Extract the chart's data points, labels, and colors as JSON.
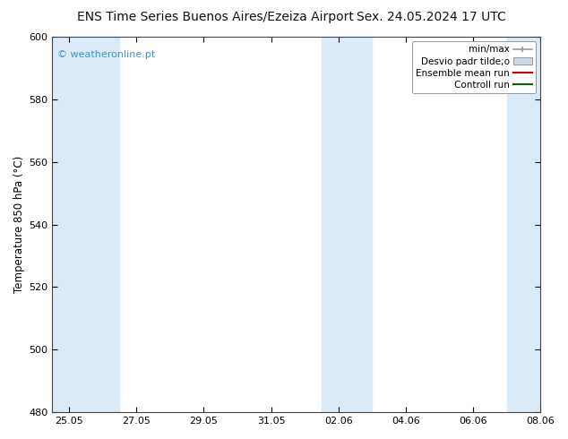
{
  "title_left": "ENS Time Series Buenos Aires/Ezeiza Airport",
  "title_right": "Sex. 24.05.2024 17 UTC",
  "ylabel": "Temperature 850 hPa (°C)",
  "watermark": "© weatheronline.pt",
  "ylim": [
    480,
    600
  ],
  "yticks": [
    480,
    500,
    520,
    540,
    560,
    580,
    600
  ],
  "xlim": [
    0,
    14.5
  ],
  "xtick_labels": [
    "25.05",
    "27.05",
    "29.05",
    "31.05",
    "02.06",
    "04.06",
    "06.06",
    "08.06"
  ],
  "xtick_positions": [
    0.5,
    2.5,
    4.5,
    6.5,
    8.5,
    10.5,
    12.5,
    14.5
  ],
  "shaded_bands": [
    {
      "xmin": 0.0,
      "xmax": 2.0
    },
    {
      "xmin": 8.0,
      "xmax": 9.5
    },
    {
      "xmin": 13.5,
      "xmax": 14.5
    }
  ],
  "shaded_color": "#daeaf7",
  "background_color": "#ffffff",
  "plot_bg_color": "#ffffff",
  "legend_items": [
    {
      "label": "min/max",
      "color": "#a8b8c8",
      "type": "errorbar"
    },
    {
      "label": "Desvio padr tilde;o",
      "color": "#c8d8e8",
      "type": "box"
    },
    {
      "label": "Ensemble mean run",
      "color": "#cc0000",
      "type": "line"
    },
    {
      "label": "Controll run",
      "color": "#006600",
      "type": "line"
    }
  ],
  "watermark_color": "#3399cc",
  "title_fontsize": 10,
  "tick_fontsize": 8,
  "ylabel_fontsize": 8.5,
  "legend_fontsize": 7.5
}
